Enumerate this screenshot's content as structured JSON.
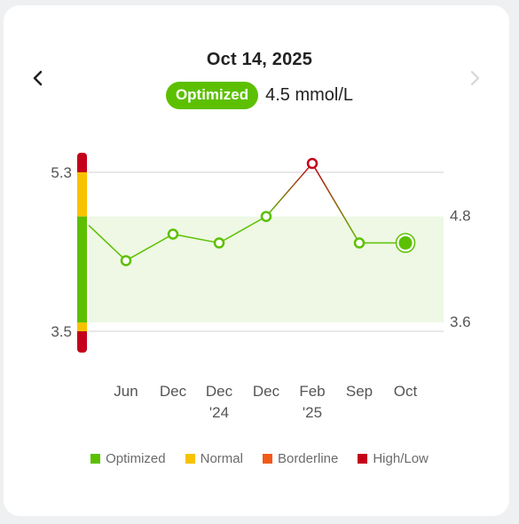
{
  "header": {
    "date": "Oct 14, 2025",
    "status_label": "Optimized",
    "value_text": "4.5 mmol/L",
    "prev_icon": "chevron-left-icon",
    "next_icon": "chevron-right-icon"
  },
  "colors": {
    "optimized": "#5cc000",
    "normal": "#f8c200",
    "borderline": "#f25a1a",
    "high_low": "#c4001a",
    "optimized_band": "#eef8e4"
  },
  "chart_data": {
    "type": "line",
    "categories": [
      "",
      "Jun",
      "Dec",
      "Dec\n'24",
      "Dec",
      "Feb\n'25",
      "Sep",
      "Oct"
    ],
    "values": [
      4.7,
      4.3,
      4.6,
      4.5,
      4.8,
      5.4,
      4.5,
      4.5
    ],
    "ylim": [
      3.5,
      5.3
    ],
    "left_ticks": [
      "5.3",
      "3.5"
    ],
    "optimal_range": [
      3.6,
      4.8
    ],
    "right_ticks": [
      "4.8",
      "3.6"
    ],
    "point_status": [
      "optimized",
      "optimized",
      "optimized",
      "optimized",
      "optimized",
      "high_low",
      "optimized",
      "optimized"
    ],
    "legend": [
      "Optimized",
      "Normal",
      "Borderline",
      "High/Low"
    ]
  }
}
